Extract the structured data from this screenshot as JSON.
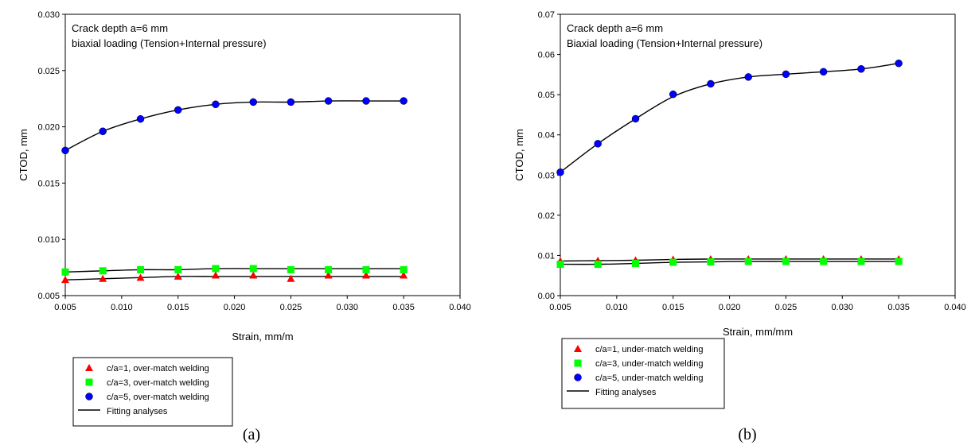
{
  "chart_data": [
    {
      "type": "scatter",
      "caption": "(a)",
      "annotation": [
        "Crack depth a=6 mm",
        "biaxial loading (Tension+Internal pressure)"
      ],
      "xlabel": "Strain, mm/m",
      "ylabel": "CTOD, mm",
      "xlim": [
        0.005,
        0.04
      ],
      "ylim": [
        0.005,
        0.03
      ],
      "xticks": [
        "0.005",
        "0.010",
        "0.015",
        "0.020",
        "0.025",
        "0.030",
        "0.035",
        "0.040"
      ],
      "yticks": [
        "0.005",
        "0.010",
        "0.015",
        "0.020",
        "0.025",
        "0.030"
      ],
      "x": [
        0.005,
        0.00833,
        0.01167,
        0.015,
        0.01833,
        0.02167,
        0.025,
        0.02833,
        0.03167,
        0.035
      ],
      "series": [
        {
          "name": "c/a=1, over-match welding",
          "marker": "triangle",
          "color": "#ff0000",
          "values": [
            0.0064,
            0.0065,
            0.0066,
            0.0067,
            0.0068,
            0.0068,
            0.0065,
            0.0068,
            0.0068,
            0.0068
          ]
        },
        {
          "name": "c/a=3, over-match welding",
          "marker": "square",
          "color": "#00ff00",
          "values": [
            0.0071,
            0.0072,
            0.0073,
            0.0073,
            0.0074,
            0.0074,
            0.0073,
            0.0073,
            0.0073,
            0.0073
          ]
        },
        {
          "name": "c/a=5, over-match welding",
          "marker": "circle",
          "color": "#0000ff",
          "values": [
            0.0179,
            0.0196,
            0.0207,
            0.0215,
            0.022,
            0.0222,
            0.0222,
            0.0223,
            0.0223,
            0.0223
          ]
        }
      ],
      "fit": [
        [
          0.0064,
          0.0065,
          0.0066,
          0.0067,
          0.0067,
          0.0067,
          0.0067,
          0.0067,
          0.0067,
          0.0067
        ],
        [
          0.0071,
          0.0072,
          0.0073,
          0.0073,
          0.0074,
          0.0074,
          0.0074,
          0.0074,
          0.0074,
          0.0074
        ],
        [
          0.0179,
          0.0196,
          0.0207,
          0.0215,
          0.022,
          0.0222,
          0.0222,
          0.0223,
          0.0223,
          0.0223
        ]
      ],
      "legend": [
        "c/a=1, over-match welding",
        "c/a=3, over-match welding",
        "c/a=5, over-match welding",
        "Fitting analyses"
      ]
    },
    {
      "type": "scatter",
      "caption": "(b)",
      "annotation": [
        "Crack depth a=6 mm",
        "Biaxial loading (Tension+Internal pressure)"
      ],
      "xlabel": "Strain, mm/mm",
      "ylabel": "CTOD, mm",
      "xlim": [
        0.005,
        0.04
      ],
      "ylim": [
        0.0,
        0.07
      ],
      "xticks": [
        "0.005",
        "0.010",
        "0.015",
        "0.020",
        "0.025",
        "0.030",
        "0.035",
        "0.040"
      ],
      "yticks": [
        "0.00",
        "0.01",
        "0.02",
        "0.03",
        "0.04",
        "0.05",
        "0.06",
        "0.07"
      ],
      "x": [
        0.005,
        0.00833,
        0.01167,
        0.015,
        0.01833,
        0.02167,
        0.025,
        0.02833,
        0.03167,
        0.035
      ],
      "series": [
        {
          "name": "c/a=1, under-match welding",
          "marker": "triangle",
          "color": "#ff0000",
          "values": [
            0.0086,
            0.0087,
            0.0088,
            0.009,
            0.0091,
            0.0091,
            0.0091,
            0.0091,
            0.0091,
            0.0091
          ]
        },
        {
          "name": "c/a=3, under-match welding",
          "marker": "square",
          "color": "#00ff00",
          "values": [
            0.0078,
            0.0078,
            0.008,
            0.0083,
            0.0084,
            0.0085,
            0.0085,
            0.0085,
            0.0085,
            0.0085
          ]
        },
        {
          "name": "c/a=5, under-match welding",
          "marker": "circle",
          "color": "#0000ff",
          "values": [
            0.0307,
            0.0378,
            0.044,
            0.0501,
            0.0527,
            0.0544,
            0.0551,
            0.0557,
            0.0564,
            0.0578
          ]
        }
      ],
      "fit": [
        [
          0.0086,
          0.0087,
          0.0088,
          0.009,
          0.0091,
          0.0091,
          0.0091,
          0.0091,
          0.0091,
          0.0091
        ],
        [
          0.0078,
          0.0078,
          0.008,
          0.0083,
          0.0084,
          0.0085,
          0.0085,
          0.0085,
          0.0085,
          0.0085
        ],
        [
          0.0307,
          0.0378,
          0.044,
          0.0495,
          0.0527,
          0.0544,
          0.0551,
          0.0557,
          0.0564,
          0.0578
        ]
      ],
      "legend": [
        "c/a=1, under-match welding",
        "c/a=3, under-match welding",
        "c/a=5, under-match welding",
        "Fitting analyses"
      ]
    }
  ]
}
